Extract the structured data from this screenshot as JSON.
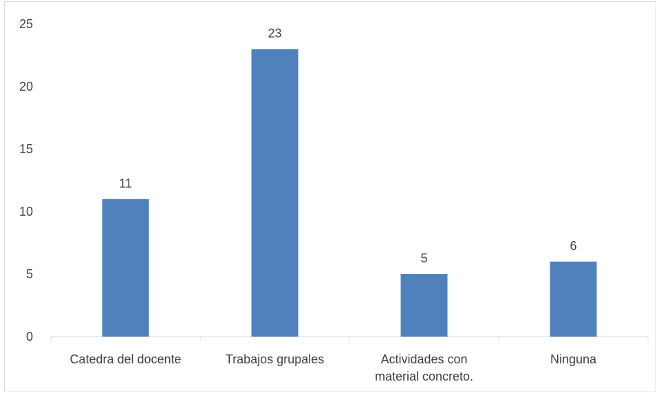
{
  "chart_data": {
    "type": "bar",
    "categories": [
      "Catedra del docente",
      "Trabajos grupales",
      "Actividades con material concreto.",
      "Ninguna"
    ],
    "category_lines": [
      [
        "Catedra del docente"
      ],
      [
        "Trabajos grupales"
      ],
      [
        "Actividades con",
        "material concreto."
      ],
      [
        "Ninguna"
      ]
    ],
    "values": [
      11,
      23,
      5,
      6
    ],
    "data_labels": [
      "11",
      "23",
      "5",
      "6"
    ],
    "title": "",
    "xlabel": "",
    "ylabel": "",
    "ylim": [
      0,
      25
    ],
    "yticks": [
      0,
      5,
      10,
      15,
      20,
      25
    ],
    "ytick_labels": [
      "0",
      "5",
      "10",
      "15",
      "20",
      "25"
    ],
    "grid": false,
    "legend": "none",
    "bar_color": "#4f81bd",
    "axis_color": "#d9d9d9",
    "text_color": "#404040"
  }
}
